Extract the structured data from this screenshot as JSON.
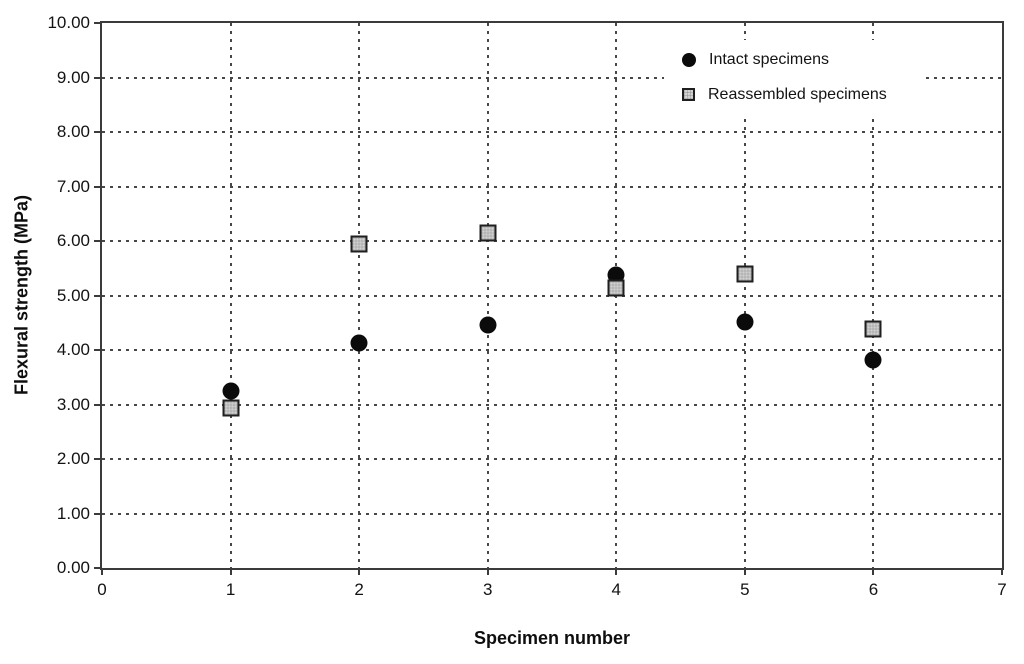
{
  "chart_data": {
    "type": "scatter",
    "title": "",
    "xlabel": "Specimen number",
    "ylabel": "Flexural strength (MPa)",
    "xlim": [
      0,
      7
    ],
    "ylim": [
      0,
      10
    ],
    "x_ticks": [
      0,
      1,
      2,
      3,
      4,
      5,
      6,
      7
    ],
    "x_tick_labels": [
      "0",
      "1",
      "2",
      "3",
      "4",
      "5",
      "6",
      "7"
    ],
    "y_ticks": [
      0,
      1,
      2,
      3,
      4,
      5,
      6,
      7,
      8,
      9,
      10
    ],
    "y_tick_labels": [
      "0.00",
      "1.00",
      "2.00",
      "3.00",
      "4.00",
      "5.00",
      "6.00",
      "7.00",
      "8.00",
      "9.00",
      "10.00"
    ],
    "grid": {
      "style": "dotted",
      "color": "#474747",
      "vertical": true,
      "horizontal": true
    },
    "legend_position": "top-right-inside",
    "x": [
      1,
      2,
      3,
      4,
      5,
      6
    ],
    "series": [
      {
        "name": "Intact specimens",
        "marker": "circle",
        "fill": "#0b0b0b",
        "values": [
          3.25,
          4.13,
          4.45,
          5.38,
          4.52,
          3.82
        ]
      },
      {
        "name": "Reassembled specimens",
        "marker": "square",
        "fill": "#d2d2d2",
        "border": "#1f1f1f",
        "values": [
          2.93,
          5.95,
          6.15,
          5.13,
          5.4,
          4.38
        ]
      }
    ]
  }
}
